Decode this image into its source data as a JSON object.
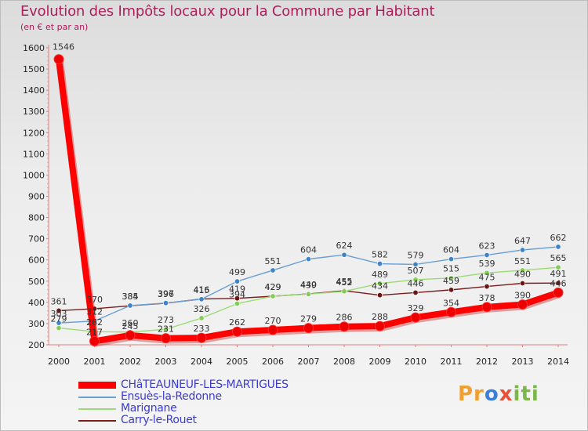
{
  "title": "Evolution des Impôts locaux pour la Commune par Habitant",
  "subtitle": "(en € et par an)",
  "logo": {
    "p": "Pr",
    "o": "o",
    "x": "x",
    "i": "iti"
  },
  "chart_data": {
    "type": "line",
    "title": "Evolution des Impôts locaux pour la Commune par Habitant",
    "subtitle": "(en € et par an)",
    "xlabel": "",
    "ylabel": "",
    "x": [
      "2000",
      "2001",
      "2002",
      "2003",
      "2004",
      "2005",
      "2006",
      "2007",
      "2008",
      "2009",
      "2010",
      "2011",
      "2012",
      "2013",
      "2014"
    ],
    "ylim": [
      200,
      1600
    ],
    "yticks": [
      200,
      300,
      400,
      500,
      600,
      700,
      800,
      900,
      1000,
      1100,
      1200,
      1300,
      1400,
      1500,
      1600
    ],
    "grid": false,
    "legend_position": "bottom-left",
    "series": [
      {
        "name": "CHâTEAUNEUF-LES-MARTIGUES",
        "color": "#ff0000",
        "marker": "#ee0000",
        "values": [
          1546,
          217,
          245,
          231,
          233,
          262,
          270,
          279,
          286,
          288,
          329,
          354,
          378,
          390,
          446
        ],
        "labels": [
          "1546",
          "217",
          "245",
          "231",
          "233",
          "262",
          "270",
          "279",
          "286",
          "288",
          "329",
          "354",
          "378",
          "390",
          "446"
        ]
      },
      {
        "name": "Ensuès-la-Redonne",
        "color": "#6a9fd4",
        "marker": "#3f84c6",
        "values": [
          303,
          312,
          385,
          397,
          415,
          499,
          551,
          604,
          624,
          582,
          579,
          604,
          623,
          647,
          662
        ],
        "labels": [
          "303",
          "312",
          "385",
          "397",
          "415",
          "499",
          "551",
          "604",
          "624",
          "582",
          "579",
          "604",
          "623",
          "647",
          "662"
        ]
      },
      {
        "name": "Marignane",
        "color": "#9cdb73",
        "marker": "#83cc55",
        "values": [
          279,
          262,
          260,
          273,
          326,
          394,
          429,
          439,
          452,
          489,
          507,
          515,
          539,
          551,
          565
        ],
        "labels": [
          "279",
          "262",
          "260",
          "273",
          "326",
          "394",
          "429",
          "439",
          "452",
          "489",
          "507",
          "515",
          "539",
          "551",
          "565"
        ]
      },
      {
        "name": "Carry-le-Rouet",
        "color": "#7a1c1c",
        "marker": "#6a1414",
        "values": [
          361,
          370,
          384,
          396,
          416,
          419,
          429,
          440,
          455,
          434,
          446,
          459,
          475,
          490,
          491
        ],
        "labels": [
          "361",
          "370",
          "384",
          "396",
          "416",
          "419",
          "429",
          "440",
          "455",
          "434",
          "446",
          "459",
          "475",
          "490",
          "491"
        ]
      }
    ]
  }
}
